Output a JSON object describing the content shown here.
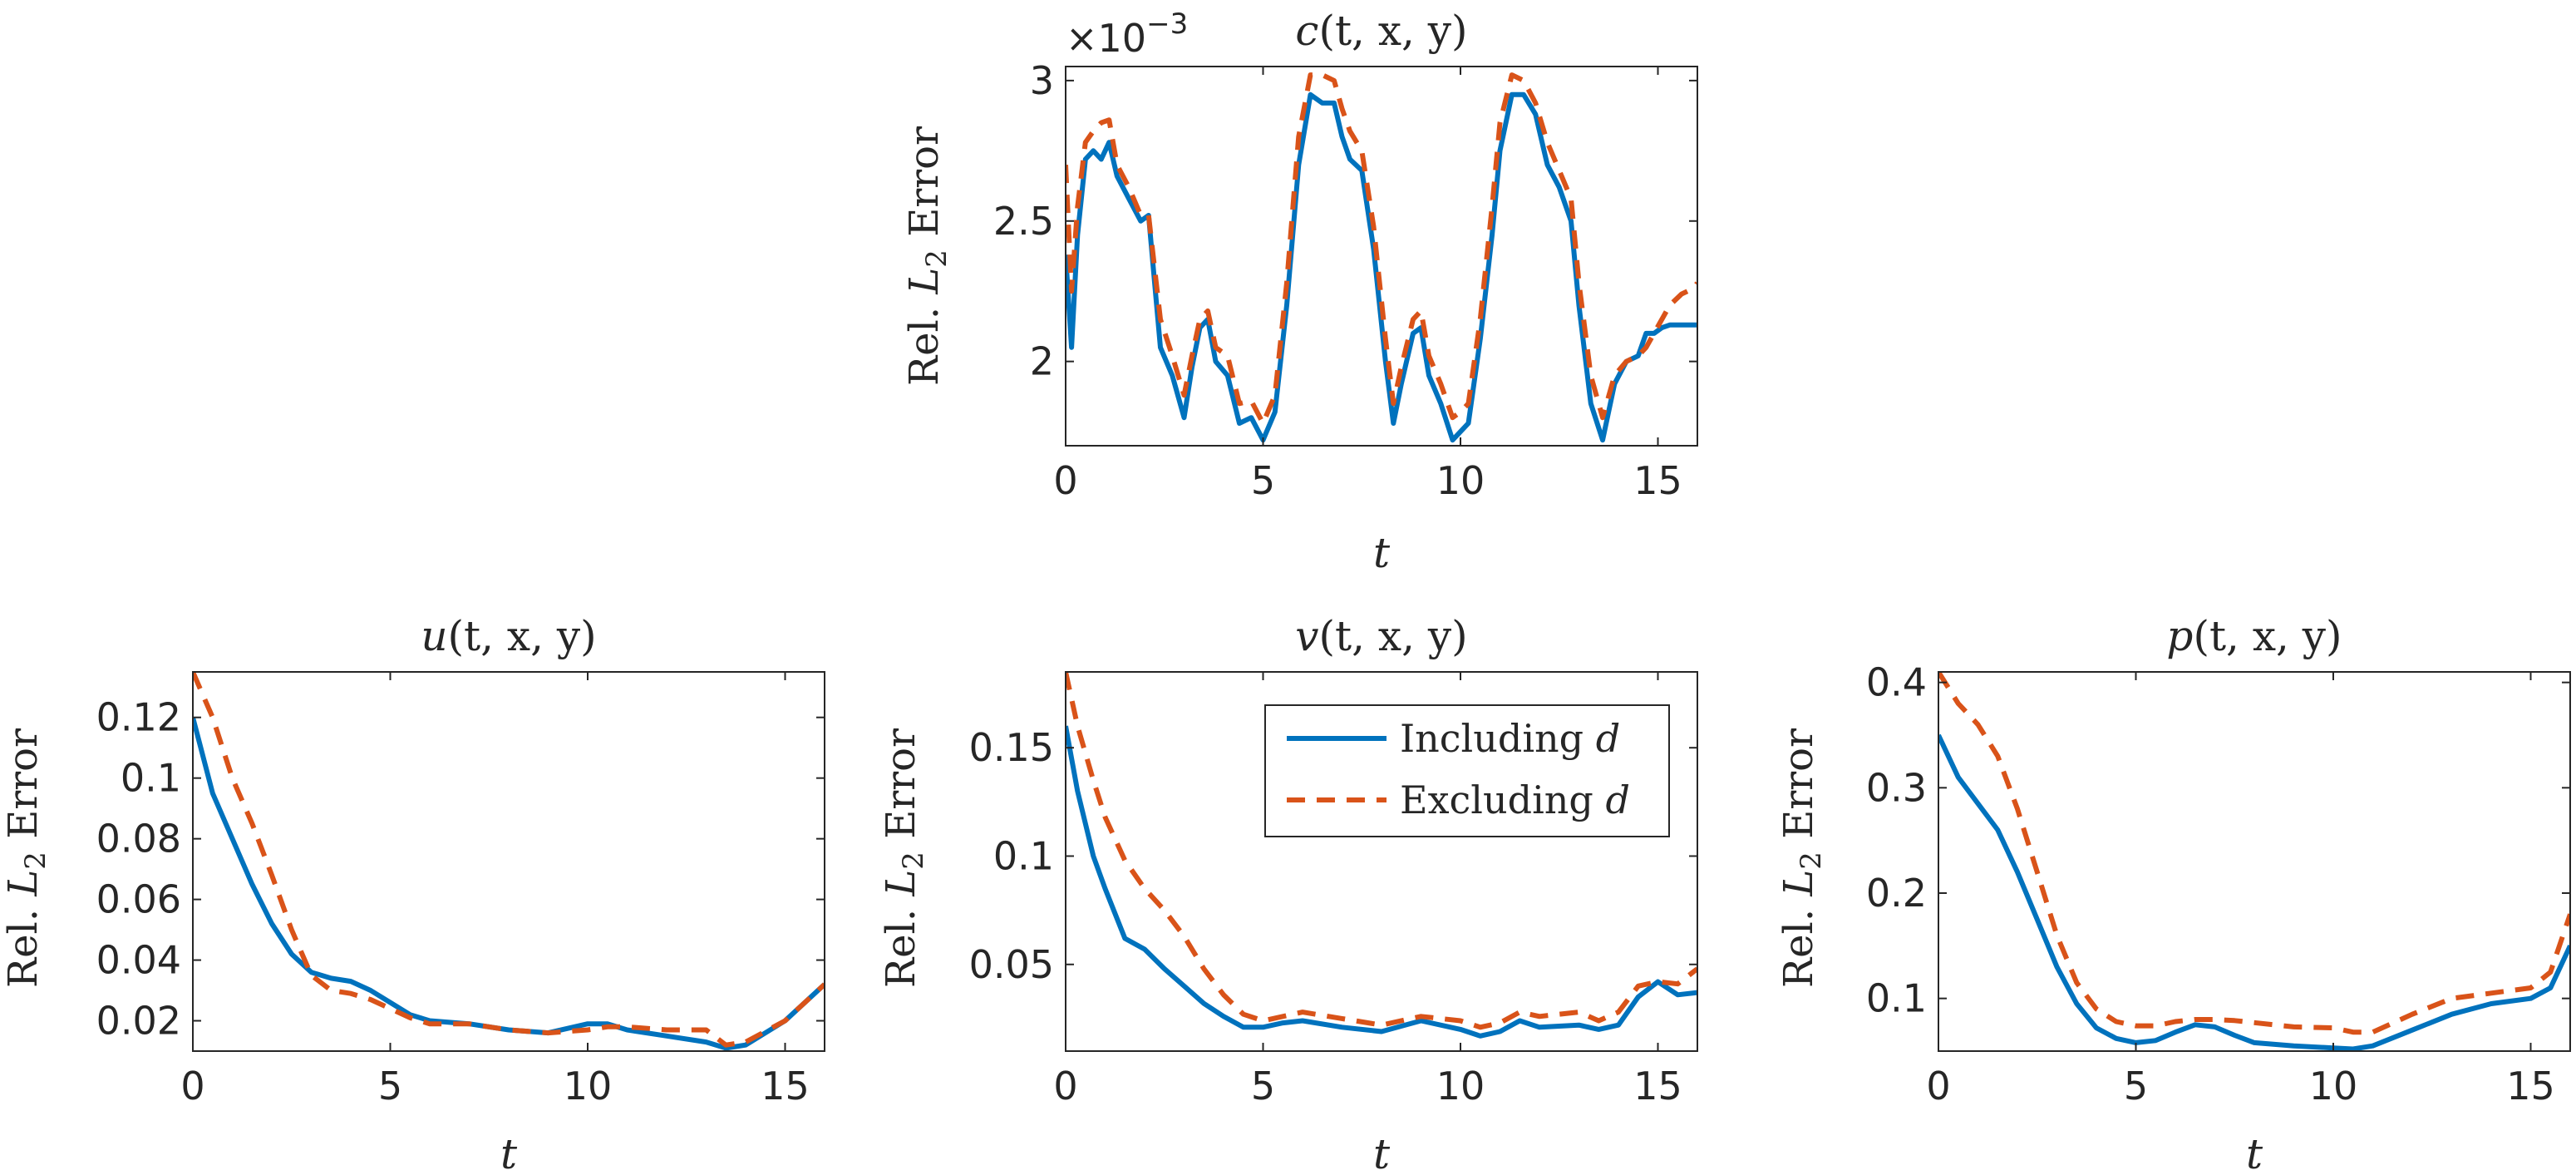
{
  "chart_data": [
    {
      "type": "line",
      "title_fn": "c",
      "title_args": "(t, x, y)",
      "xlabel": "t",
      "ylabel_prefix": "Rel.",
      "ylabel_var": "L",
      "ylabel_sub": "2",
      "ylabel_suffix": "Error",
      "xlim": [
        0,
        16
      ],
      "ylim": [
        1.7,
        3.05
      ],
      "xticks": [
        0,
        5,
        10,
        15
      ],
      "yticks": [
        2,
        2.5,
        3
      ],
      "ytick_labels": [
        "2",
        "2.5",
        "3"
      ],
      "exponent_base": "×10",
      "exponent_power": "−3",
      "series": [
        {
          "name": "Including d",
          "color": "#0072BD",
          "style": "solid",
          "x": [
            0,
            0.15,
            0.3,
            0.5,
            0.7,
            0.9,
            1.1,
            1.3,
            1.6,
            1.9,
            2.1,
            2.4,
            2.7,
            3.0,
            3.2,
            3.4,
            3.6,
            3.8,
            4.1,
            4.4,
            4.7,
            5.0,
            5.3,
            5.6,
            5.9,
            6.2,
            6.5,
            6.8,
            7.0,
            7.2,
            7.5,
            7.8,
            8.1,
            8.3,
            8.5,
            8.8,
            9.0,
            9.2,
            9.5,
            9.8,
            10.0,
            10.2,
            10.5,
            10.8,
            11.0,
            11.3,
            11.6,
            11.9,
            12.2,
            12.5,
            12.8,
            13.0,
            13.3,
            13.6,
            13.9,
            14.2,
            14.5,
            14.7,
            14.9,
            15.1,
            15.3,
            15.6,
            15.9,
            16.0
          ],
          "y": [
            2.38,
            2.05,
            2.45,
            2.72,
            2.75,
            2.72,
            2.78,
            2.66,
            2.58,
            2.5,
            2.52,
            2.05,
            1.95,
            1.8,
            1.98,
            2.12,
            2.15,
            2.0,
            1.95,
            1.78,
            1.8,
            1.72,
            1.82,
            2.2,
            2.7,
            2.95,
            2.92,
            2.92,
            2.8,
            2.72,
            2.68,
            2.4,
            2.0,
            1.78,
            1.92,
            2.1,
            2.12,
            1.95,
            1.85,
            1.72,
            1.75,
            1.78,
            2.08,
            2.45,
            2.75,
            2.95,
            2.95,
            2.88,
            2.7,
            2.62,
            2.5,
            2.2,
            1.85,
            1.72,
            1.92,
            2.0,
            2.02,
            2.1,
            2.1,
            2.12,
            2.13,
            2.13,
            2.13,
            2.13
          ]
        },
        {
          "name": "Excluding d",
          "color": "#D95319",
          "style": "dashed",
          "x": [
            0,
            0.15,
            0.3,
            0.5,
            0.7,
            0.9,
            1.1,
            1.3,
            1.6,
            1.9,
            2.1,
            2.4,
            2.7,
            3.0,
            3.2,
            3.4,
            3.6,
            3.8,
            4.1,
            4.4,
            4.7,
            5.0,
            5.3,
            5.6,
            5.9,
            6.2,
            6.5,
            6.8,
            7.0,
            7.2,
            7.5,
            7.8,
            8.1,
            8.3,
            8.5,
            8.8,
            9.0,
            9.2,
            9.5,
            9.8,
            10.0,
            10.2,
            10.5,
            10.8,
            11.0,
            11.3,
            11.6,
            11.9,
            12.2,
            12.5,
            12.8,
            13.0,
            13.3,
            13.6,
            13.9,
            14.2,
            14.5,
            14.7,
            14.9,
            15.1,
            15.3,
            15.6,
            15.9,
            16.0
          ],
          "y": [
            2.7,
            2.25,
            2.55,
            2.78,
            2.82,
            2.85,
            2.86,
            2.7,
            2.62,
            2.52,
            2.52,
            2.15,
            2.02,
            1.88,
            2.02,
            2.15,
            2.18,
            2.05,
            2.02,
            1.85,
            1.86,
            1.78,
            1.88,
            2.28,
            2.8,
            3.02,
            3.02,
            3.0,
            2.9,
            2.82,
            2.75,
            2.48,
            2.08,
            1.85,
            1.98,
            2.15,
            2.18,
            2.02,
            1.92,
            1.8,
            1.82,
            1.85,
            2.15,
            2.55,
            2.85,
            3.02,
            3.0,
            2.92,
            2.78,
            2.68,
            2.58,
            2.28,
            1.95,
            1.8,
            1.95,
            2.0,
            2.02,
            2.05,
            2.1,
            2.15,
            2.2,
            2.24,
            2.26,
            2.28
          ]
        }
      ]
    },
    {
      "type": "line",
      "title_fn": "u",
      "title_args": "(t, x, y)",
      "xlabel": "t",
      "ylabel_prefix": "Rel.",
      "ylabel_var": "L",
      "ylabel_sub": "2",
      "ylabel_suffix": "Error",
      "xlim": [
        0,
        16
      ],
      "ylim": [
        0.01,
        0.135
      ],
      "xticks": [
        0,
        5,
        10,
        15
      ],
      "yticks": [
        0.02,
        0.04,
        0.06,
        0.08,
        0.1,
        0.12
      ],
      "ytick_labels": [
        "0.02",
        "0.04",
        "0.06",
        "0.08",
        "0.1",
        "0.12"
      ],
      "series": [
        {
          "name": "Including d",
          "color": "#0072BD",
          "style": "solid",
          "x": [
            0,
            0.5,
            1,
            1.5,
            2,
            2.5,
            3,
            3.5,
            4,
            4.5,
            5,
            5.5,
            6,
            7,
            8,
            9,
            10,
            10.5,
            11,
            12,
            13,
            13.5,
            14,
            15,
            16
          ],
          "y": [
            0.12,
            0.095,
            0.08,
            0.065,
            0.052,
            0.042,
            0.036,
            0.034,
            0.033,
            0.03,
            0.026,
            0.022,
            0.02,
            0.019,
            0.017,
            0.016,
            0.019,
            0.019,
            0.017,
            0.015,
            0.013,
            0.011,
            0.012,
            0.02,
            0.032
          ]
        },
        {
          "name": "Excluding d",
          "color": "#D95319",
          "style": "dashed",
          "x": [
            0,
            0.5,
            1,
            1.5,
            2,
            2.5,
            3,
            3.5,
            4,
            4.5,
            5,
            5.5,
            6,
            7,
            8,
            9,
            10,
            10.5,
            11,
            12,
            13,
            13.5,
            14,
            15,
            16
          ],
          "y": [
            0.135,
            0.12,
            0.1,
            0.085,
            0.068,
            0.05,
            0.035,
            0.03,
            0.029,
            0.027,
            0.024,
            0.021,
            0.019,
            0.019,
            0.017,
            0.016,
            0.017,
            0.018,
            0.018,
            0.017,
            0.017,
            0.012,
            0.013,
            0.02,
            0.032
          ]
        }
      ]
    },
    {
      "type": "line",
      "title_fn": "v",
      "title_args": "(t, x, y)",
      "xlabel": "t",
      "ylabel_prefix": "Rel.",
      "ylabel_var": "L",
      "ylabel_sub": "2",
      "ylabel_suffix": "Error",
      "xlim": [
        0,
        16
      ],
      "ylim": [
        0.01,
        0.185
      ],
      "xticks": [
        0,
        5,
        10,
        15
      ],
      "yticks": [
        0.05,
        0.1,
        0.15
      ],
      "ytick_labels": [
        "0.05",
        "0.1",
        "0.15"
      ],
      "legend": {
        "placement": "top-right",
        "entries": [
          {
            "label_text": "Including",
            "label_var": "d",
            "color": "#0072BD",
            "style": "solid"
          },
          {
            "label_text": "Excluding",
            "label_var": "d",
            "color": "#D95319",
            "style": "dashed"
          }
        ]
      },
      "series": [
        {
          "name": "Including d",
          "color": "#0072BD",
          "style": "solid",
          "x": [
            0,
            0.3,
            0.7,
            1,
            1.5,
            2,
            2.5,
            3,
            3.5,
            4,
            4.5,
            5,
            5.5,
            6,
            7,
            8,
            9,
            10,
            10.5,
            11,
            11.5,
            12,
            13,
            13.5,
            14,
            14.5,
            15,
            15.5,
            16
          ],
          "y": [
            0.16,
            0.13,
            0.1,
            0.085,
            0.062,
            0.057,
            0.048,
            0.04,
            0.032,
            0.026,
            0.021,
            0.021,
            0.023,
            0.024,
            0.021,
            0.019,
            0.024,
            0.02,
            0.017,
            0.019,
            0.024,
            0.021,
            0.022,
            0.02,
            0.022,
            0.035,
            0.042,
            0.036,
            0.037
          ]
        },
        {
          "name": "Excluding d",
          "color": "#D95319",
          "style": "dashed",
          "x": [
            0,
            0.3,
            0.7,
            1,
            1.5,
            2,
            2.5,
            3,
            3.5,
            4,
            4.5,
            5,
            5.5,
            6,
            7,
            8,
            9,
            10,
            10.5,
            11,
            11.5,
            12,
            13,
            13.5,
            14,
            14.5,
            15,
            15.5,
            16
          ],
          "y": [
            0.185,
            0.16,
            0.135,
            0.118,
            0.098,
            0.085,
            0.075,
            0.063,
            0.048,
            0.036,
            0.027,
            0.024,
            0.026,
            0.028,
            0.025,
            0.022,
            0.026,
            0.024,
            0.021,
            0.023,
            0.028,
            0.026,
            0.028,
            0.024,
            0.028,
            0.04,
            0.042,
            0.041,
            0.048
          ]
        }
      ]
    },
    {
      "type": "line",
      "title_fn": "p",
      "title_args": "(t, x, y)",
      "xlabel": "t",
      "ylabel_prefix": "Rel.",
      "ylabel_var": "L",
      "ylabel_sub": "2",
      "ylabel_suffix": "Error",
      "xlim": [
        0,
        16
      ],
      "ylim": [
        0.05,
        0.41
      ],
      "xticks": [
        0,
        5,
        10,
        15
      ],
      "yticks": [
        0.1,
        0.2,
        0.3,
        0.4
      ],
      "ytick_labels": [
        "0.1",
        "0.2",
        "0.3",
        "0.4"
      ],
      "series": [
        {
          "name": "Including d",
          "color": "#0072BD",
          "style": "solid",
          "x": [
            0,
            0.5,
            1,
            1.5,
            2,
            2.5,
            3,
            3.5,
            4,
            4.5,
            5,
            5.5,
            6,
            6.5,
            7,
            7.5,
            8,
            9,
            10,
            10.5,
            11,
            12,
            13,
            14,
            15,
            15.5,
            16
          ],
          "y": [
            0.35,
            0.31,
            0.285,
            0.26,
            0.22,
            0.175,
            0.13,
            0.095,
            0.072,
            0.062,
            0.058,
            0.06,
            0.068,
            0.075,
            0.073,
            0.065,
            0.058,
            0.055,
            0.053,
            0.052,
            0.055,
            0.07,
            0.085,
            0.095,
            0.1,
            0.11,
            0.15
          ]
        },
        {
          "name": "Excluding d",
          "color": "#D95319",
          "style": "dashed",
          "x": [
            0,
            0.5,
            1,
            1.5,
            2,
            2.5,
            3,
            3.5,
            4,
            4.5,
            5,
            5.5,
            6,
            6.5,
            7,
            7.5,
            8,
            9,
            10,
            10.5,
            11,
            12,
            13,
            14,
            15,
            15.5,
            16
          ],
          "y": [
            0.41,
            0.38,
            0.36,
            0.33,
            0.28,
            0.22,
            0.16,
            0.115,
            0.09,
            0.078,
            0.074,
            0.074,
            0.078,
            0.08,
            0.08,
            0.079,
            0.077,
            0.073,
            0.072,
            0.068,
            0.068,
            0.085,
            0.1,
            0.105,
            0.11,
            0.125,
            0.18
          ]
        }
      ]
    }
  ]
}
